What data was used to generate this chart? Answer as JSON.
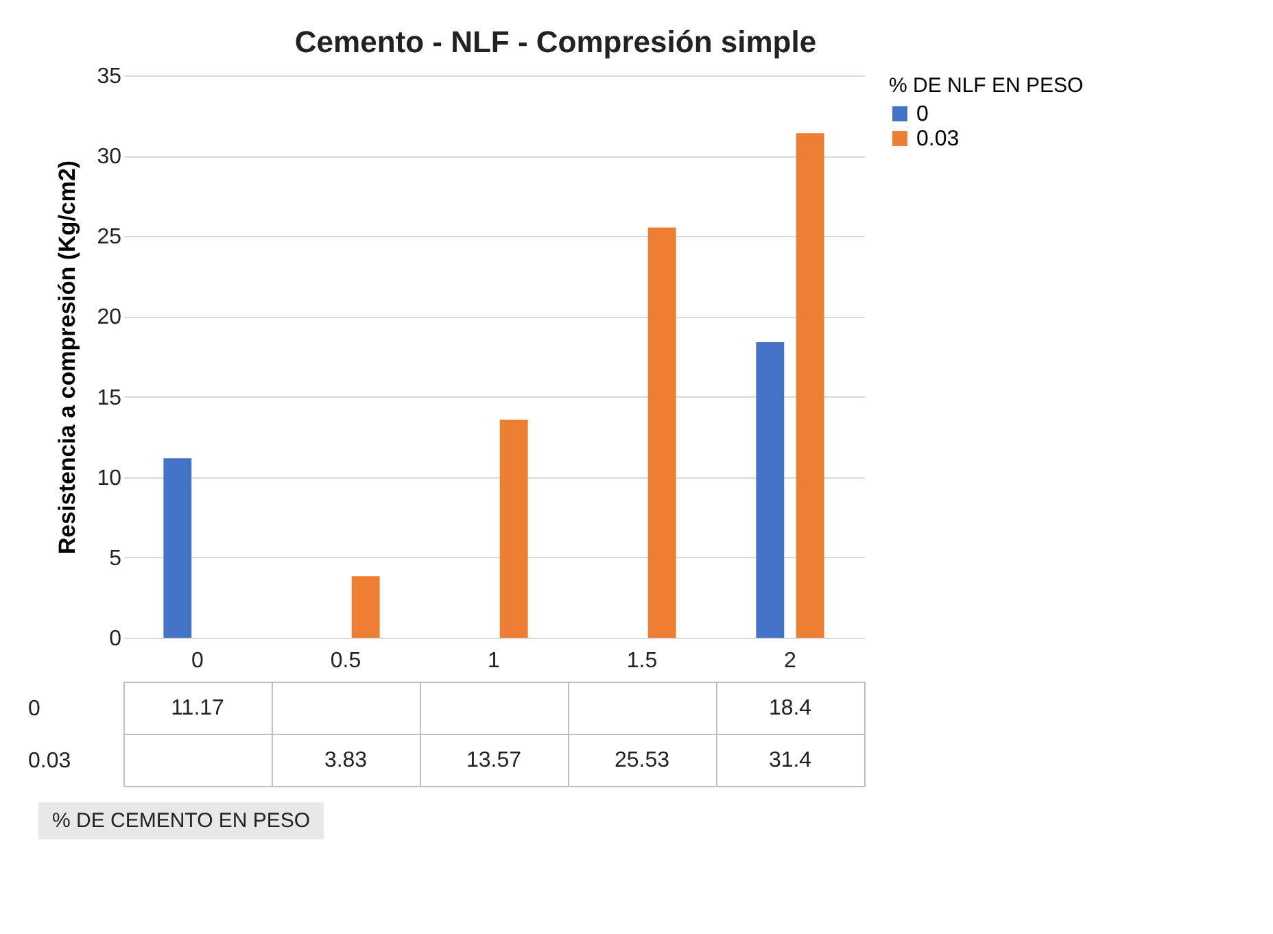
{
  "chart_data": {
    "type": "bar",
    "title": "Cemento - NLF - Compresión simple",
    "annotations": [
      "% DE CEMENTO EN PESO"
    ],
    "ylabel": "Resistencia a compresión (Kg/cm2)",
    "legend_title": "% DE NLF EN PESO",
    "categories": [
      "0",
      "0.5",
      "1",
      "1.5",
      "2"
    ],
    "series": [
      {
        "name": "0",
        "color": "#4472c4",
        "values": [
          11.17,
          null,
          null,
          null,
          18.4
        ]
      },
      {
        "name": "0.03",
        "color": "#ed7d31",
        "values": [
          null,
          3.83,
          13.57,
          25.53,
          31.4
        ]
      }
    ],
    "ylim": [
      0,
      35
    ],
    "yticks": [
      0,
      5,
      10,
      15,
      20,
      25,
      30,
      35
    ],
    "grid": "y",
    "legend": "right",
    "data_labels": true
  }
}
